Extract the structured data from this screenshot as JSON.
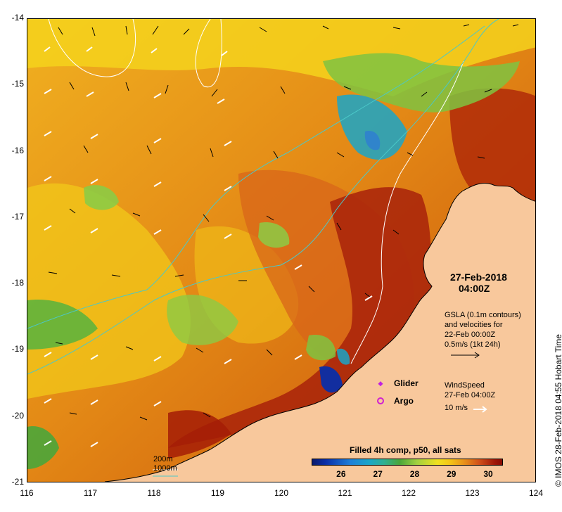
{
  "map": {
    "lat_ticks": [
      "-14",
      "-15",
      "-16",
      "-17",
      "-18",
      "-19",
      "-20",
      "-21"
    ],
    "lon_ticks": [
      "116",
      "117",
      "118",
      "119",
      "120",
      "121",
      "122",
      "123",
      "124"
    ],
    "lat_range": [
      -21,
      -14
    ],
    "lon_range": [
      116,
      124
    ],
    "sea_colors": {
      "warm": "#c8500a",
      "hot": "#9e1a00",
      "mid": "#e6a012",
      "cool": "#7fc341",
      "cold": "#1aa6c8",
      "coldest": "#0a2ea8",
      "land": "#f8c89c"
    }
  },
  "date": {
    "line1": "27-Feb-2018",
    "line2": "04:00Z"
  },
  "gsla_note": {
    "line1": "GSLA (0.1m contours)",
    "line2": "and velocities for",
    "line3": "22-Feb 00:00Z",
    "line4": "0.5m/s (1kt 24h)"
  },
  "markers": {
    "glider": "Glider",
    "argo": "Argo"
  },
  "wind_note": {
    "line1": "WindSpeed",
    "line2": "27-Feb 04:00Z",
    "line3": "10 m/s"
  },
  "colorbar": {
    "title": "Filled 4h comp, p50, all sats",
    "ticks": [
      "26",
      "27",
      "28",
      "29",
      "30"
    ],
    "range": [
      25.2,
      30.4
    ]
  },
  "depth": {
    "shallow": "200m",
    "deep": "1000m"
  },
  "credit": "© IMOS 28-Feb-2018 04:55 Hobart Time"
}
